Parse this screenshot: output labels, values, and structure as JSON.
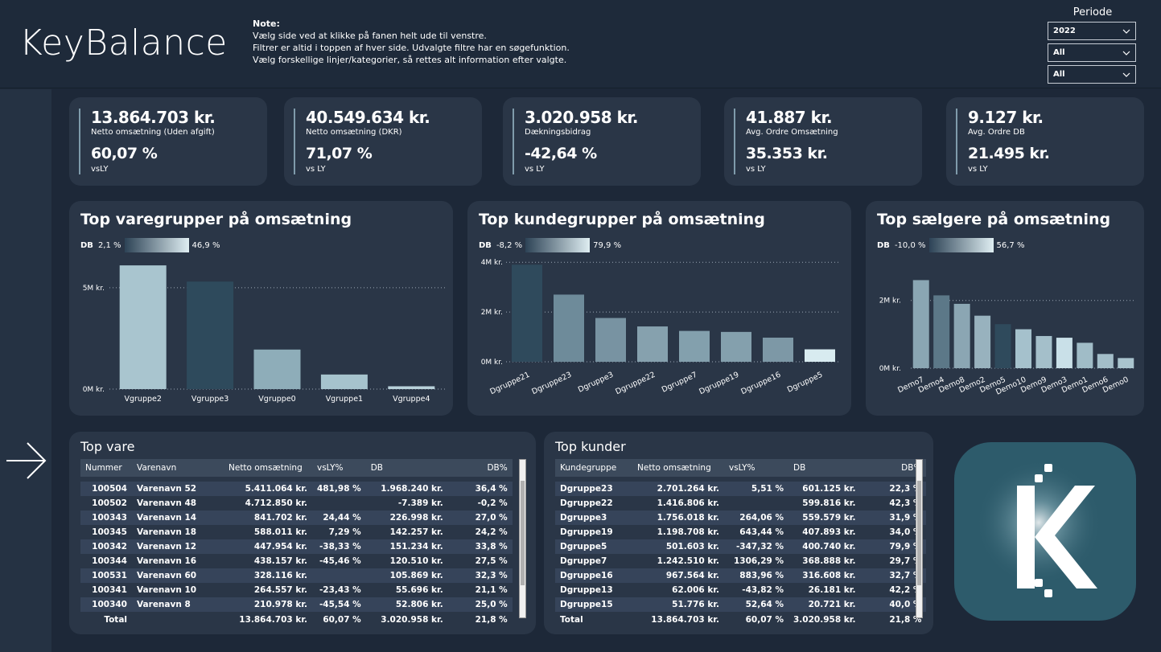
{
  "header": {
    "logo_text": "KeyBalance",
    "note_title": "Note:",
    "note_lines": [
      "Vælg side ved at klikke på fanen helt ude til venstre.",
      "Filtrer er altid i toppen af hver side. Udvalgte filtre har en søgefunktion.",
      "Vælg forskellige linjer/kategorier, så rettes alt information efter valgte."
    ],
    "periode_label": "Periode",
    "slicers": [
      "2022",
      "All",
      "All"
    ]
  },
  "kpis": [
    {
      "value": "13.864.703 kr.",
      "label": "Netto omsætning (Uden afgift)",
      "value2": "60,07 %",
      "label2": "vsLY"
    },
    {
      "value": "40.549.634 kr.",
      "label": "Netto omsætning (DKR)",
      "value2": "71,07 %",
      "label2": "vs LY"
    },
    {
      "value": "3.020.958 kr.",
      "label": "Dækningsbidrag",
      "value2": "-42,64 %",
      "label2": "vs LY"
    },
    {
      "value": "41.887 kr.",
      "label": "Avg. Ordre Omsætning",
      "value2": "35.353 kr.",
      "label2": "vs LY"
    },
    {
      "value": "9.127 kr.",
      "label": "Avg. Ordre DB",
      "value2": "21.495 kr.",
      "label2": "vs LY"
    }
  ],
  "charts": {
    "varegrupper": {
      "title": "Top varegrupper på omsætning",
      "legend_label": "DB",
      "legend_min": "2,1 %",
      "legend_max": "46,9 %"
    },
    "kundegrupper": {
      "title": "Top kundegrupper på omsætning",
      "legend_label": "DB",
      "legend_min": "-8,2 %",
      "legend_max": "79,9 %"
    },
    "saelgere": {
      "title": "Top sælgere på omsætning",
      "legend_label": "DB",
      "legend_min": "-10,0 %",
      "legend_max": "56,7 %"
    }
  },
  "chart_data": [
    {
      "type": "bar",
      "title": "Top varegrupper på omsætning",
      "categories": [
        "Vgruppe2",
        "Vgruppe3",
        "Vgruppe0",
        "Vgruppe1",
        "Vgruppe4"
      ],
      "values": [
        6100000,
        5300000,
        1950000,
        720000,
        140000
      ],
      "colors": [
        "#a9c5cf",
        "#2e4a5c",
        "#8eadb9",
        "#a6c3cd",
        "#b8d1da"
      ],
      "yticks": [
        "0M kr.",
        "5M kr."
      ],
      "ytick_values": [
        0,
        5000000
      ],
      "ylim": [
        0,
        6500000
      ]
    },
    {
      "type": "bar",
      "title": "Top kundegrupper på omsætning",
      "categories": [
        "Dgruppe21",
        "Dgruppe23",
        "Dgruppe3",
        "Dgruppe22",
        "Dgruppe7",
        "Dgruppe19",
        "Dgruppe16",
        "Dgruppe5"
      ],
      "values": [
        3900000,
        2700000,
        1760000,
        1420000,
        1240000,
        1200000,
        970000,
        500000
      ],
      "colors": [
        "#2f4a5c",
        "#6e8b9a",
        "#7893a2",
        "#86a1ae",
        "#83a0ad",
        "#84a0ad",
        "#7d98a6",
        "#d8ebf0"
      ],
      "yticks": [
        "0M kr.",
        "2M kr.",
        "4M kr."
      ],
      "ytick_values": [
        0,
        2000000,
        4000000
      ],
      "ylim": [
        0,
        4200000
      ]
    },
    {
      "type": "bar",
      "title": "Top sælgere på omsætning",
      "categories": [
        "Demo7",
        "Demo4",
        "Demo8",
        "Demo2",
        "Demo5",
        "Demo10",
        "Demo9",
        "Demo3",
        "Demo1",
        "Demo6",
        "Demo0"
      ],
      "values": [
        2600000,
        2150000,
        1900000,
        1550000,
        1300000,
        1150000,
        950000,
        900000,
        750000,
        420000,
        300000
      ],
      "colors": [
        "#8aa6b3",
        "#5c7888",
        "#8ba6b3",
        "#98b2be",
        "#2f4a5c",
        "#a5c1cc",
        "#a4bfca",
        "#c9e0e8",
        "#a0bcc7",
        "#a3bec9",
        "#a9c4ce"
      ],
      "yticks": [
        "0M kr.",
        "2M kr."
      ],
      "ytick_values": [
        0,
        2000000
      ],
      "ylim": [
        0,
        2800000
      ]
    }
  ],
  "top_vare": {
    "title": "Top vare",
    "headers": [
      "Nummer",
      "Varenavn",
      "Netto omsætning",
      "vsLY%",
      "DB",
      "DB%"
    ],
    "rows": [
      [
        "100504",
        "Varenavn 52",
        "5.411.064 kr.",
        "481,98 %",
        "1.968.240 kr.",
        "36,4 %"
      ],
      [
        "100502",
        "Varenavn 48",
        "4.712.850 kr.",
        "",
        "-7.389 kr.",
        "-0,2 %"
      ],
      [
        "100343",
        "Varenavn 14",
        "841.702 kr.",
        "24,44 %",
        "226.998 kr.",
        "27,0 %"
      ],
      [
        "100345",
        "Varenavn 18",
        "588.011 kr.",
        "7,29 %",
        "142.257 kr.",
        "24,2 %"
      ],
      [
        "100342",
        "Varenavn 12",
        "447.954 kr.",
        "-38,33 %",
        "151.234 kr.",
        "33,8 %"
      ],
      [
        "100344",
        "Varenavn 16",
        "438.157 kr.",
        "-45,46 %",
        "120.510 kr.",
        "27,5 %"
      ],
      [
        "100531",
        "Varenavn 60",
        "328.116 kr.",
        "",
        "105.869 kr.",
        "32,3 %"
      ],
      [
        "100341",
        "Varenavn 10",
        "264.557 kr.",
        "-23,43 %",
        "55.696 kr.",
        "21,1 %"
      ],
      [
        "100340",
        "Varenavn 8",
        "210.978 kr.",
        "-45,54 %",
        "52.806 kr.",
        "25,0 %"
      ]
    ],
    "total": [
      "Total",
      "",
      "13.864.703 kr.",
      "60,07 %",
      "3.020.958 kr.",
      "21,8 %"
    ]
  },
  "top_kunder": {
    "title": "Top kunder",
    "headers": [
      "Kundegruppe",
      "Netto omsætning",
      "vsLY%",
      "DB",
      "DB%"
    ],
    "rows": [
      [
        "Dgruppe23",
        "2.701.264 kr.",
        "5,51 %",
        "601.125 kr.",
        "22,3 %"
      ],
      [
        "Dgruppe22",
        "1.416.806 kr.",
        "",
        "599.816 kr.",
        "42,3 %"
      ],
      [
        "Dgruppe3",
        "1.756.018 kr.",
        "264,06 %",
        "559.579 kr.",
        "31,9 %"
      ],
      [
        "Dgruppe19",
        "1.198.708 kr.",
        "643,44 %",
        "407.893 kr.",
        "34,0 %"
      ],
      [
        "Dgruppe5",
        "501.603 kr.",
        "-347,32 %",
        "400.740 kr.",
        "79,9 %"
      ],
      [
        "Dgruppe7",
        "1.242.510 kr.",
        "1306,29 %",
        "368.888 kr.",
        "29,7 %"
      ],
      [
        "Dgruppe16",
        "967.564 kr.",
        "883,96 %",
        "316.608 kr.",
        "32,7 %"
      ],
      [
        "Dgruppe13",
        "62.006 kr.",
        "-43,82 %",
        "26.181 kr.",
        "42,2 %"
      ],
      [
        "Dgruppe15",
        "51.776 kr.",
        "52,64 %",
        "20.721 kr.",
        "40,0 %"
      ]
    ],
    "total": [
      "Total",
      "13.864.703 kr.",
      "60,07 %",
      "3.020.958 kr.",
      "21,8 %"
    ]
  },
  "colors": {
    "background": "#1d2838",
    "card": "#2a3647",
    "accent": "#7f9bab",
    "logo_tile": "#2d5b6b"
  }
}
